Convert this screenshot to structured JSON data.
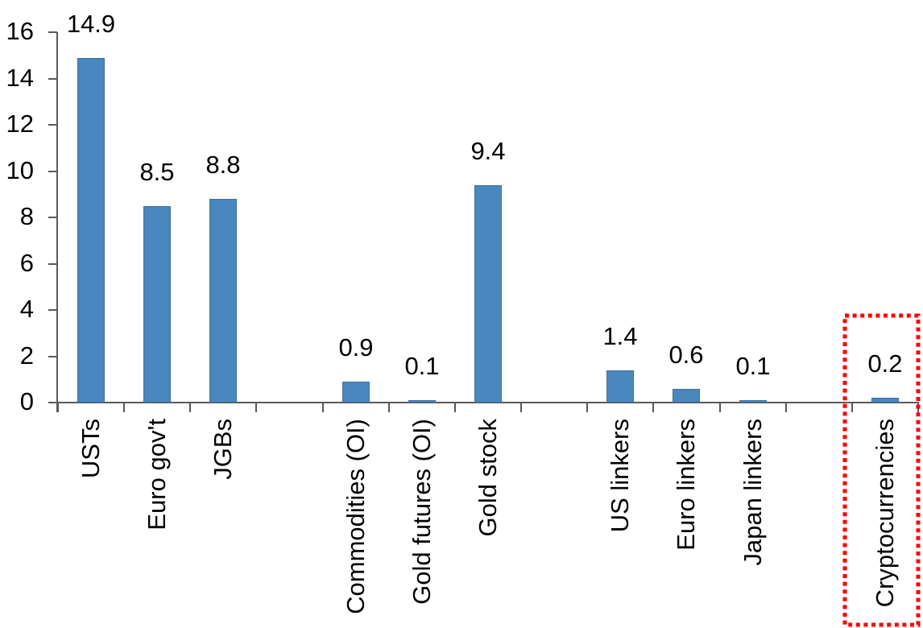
{
  "chart_data": {
    "type": "bar",
    "title": "",
    "xlabel": "",
    "ylabel": "",
    "categories": [
      "USTs",
      "Euro gov't",
      "JGBs",
      "Commodities (OI)",
      "Gold futures (OI)",
      "Gold stock",
      "US linkers",
      "Euro linkers",
      "Japan linkers",
      "Cryptocurrencies"
    ],
    "values": [
      14.9,
      8.5,
      8.8,
      0.9,
      0.1,
      9.4,
      1.4,
      0.6,
      0.1,
      0.2
    ],
    "value_labels": [
      "14.9",
      "8.5",
      "8.8",
      "0.9",
      "0.1",
      "9.4",
      "1.4",
      "0.6",
      "0.1",
      "0.2"
    ],
    "slot_index": [
      0,
      1,
      2,
      4,
      5,
      6,
      8,
      9,
      10,
      12
    ],
    "total_slots": 13,
    "ylim": [
      0,
      16
    ],
    "yticks": [
      "16",
      "14",
      "12",
      "10",
      "8",
      "6",
      "4",
      "2",
      "0"
    ],
    "ytick_values": [
      16,
      14,
      12,
      10,
      8,
      6,
      4,
      2,
      0
    ],
    "grid": false,
    "legend": false,
    "colors": {
      "bar_fill": "#4A87BE",
      "bar_border": "#41719C",
      "axis": "#595959",
      "text": "#000000",
      "highlight_box": "#FF0000"
    },
    "highlight": {
      "category": "Cryptocurrencies",
      "shape": "red-dotted-rectangle"
    }
  }
}
